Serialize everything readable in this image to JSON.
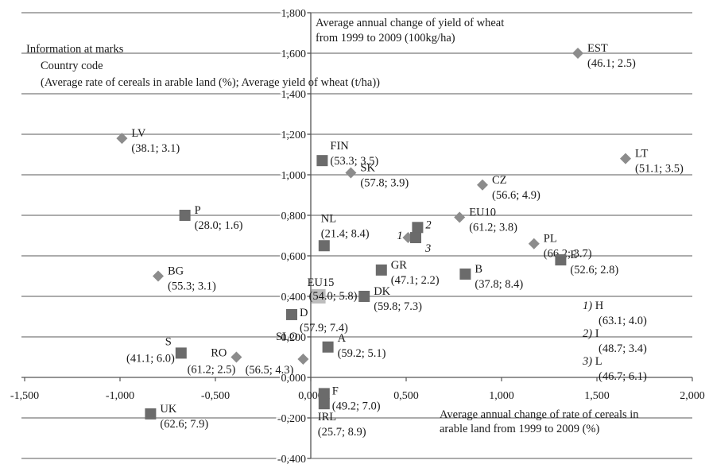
{
  "chart_data": {
    "type": "scatter",
    "title": "",
    "ylabel": "Average annual change of yield of wheat from 1999 to 2009 (100kg/ha)",
    "ylabel_lines": [
      "Average annual change of yield of wheat",
      "from 1999 to 2009 (100kg/ha)"
    ],
    "xlabel": "Average annual change of rate of cereals in arable land from 1999 to 2009 (%)",
    "xlabel_lines": [
      "Average annual change of rate of cereals in",
      "arable land from 1999 to 2009 (%)"
    ],
    "xlim": [
      -1.5,
      2.0
    ],
    "ylim": [
      -0.4,
      1.8
    ],
    "x_ticks": [
      "-1,500",
      "-1,000",
      "-0,500",
      "0,000",
      "0,500",
      "1,000",
      "1,500",
      "2,000"
    ],
    "x_tick_values": [
      -1.5,
      -1.0,
      -0.5,
      0.0,
      0.5,
      1.0,
      1.5,
      2.0
    ],
    "y_ticks": [
      "-0,400",
      "-0,200",
      "0,000",
      "0,200",
      "0,400",
      "0,600",
      "0,800",
      "1,000",
      "1,200",
      "1,400",
      "1,600",
      "1,800"
    ],
    "y_tick_values": [
      -0.4,
      -0.2,
      0.0,
      0.2,
      0.4,
      0.6,
      0.8,
      1.0,
      1.2,
      1.4,
      1.6,
      1.8
    ],
    "grid": "horizontal",
    "legend_note": {
      "title": "Information at marks",
      "line1": "Country code",
      "line2": "(Average rate of cereals in arable land (%); Average yield of wheat (t/ha))"
    },
    "footnotes": [
      {
        "num": "1)",
        "code": "H",
        "info": "(63.1; 4.0)"
      },
      {
        "num": "2)",
        "code": "I",
        "info": "(48.7; 3.4)"
      },
      {
        "num": "3)",
        "code": "L",
        "info": "(46.7; 6.1)"
      }
    ],
    "colors": {
      "diamond": "#8c8c8c",
      "square": "#6b6b6b",
      "eu15": "#bdbdbd",
      "grid": "#7a7a7a"
    },
    "points": [
      {
        "code": "EST",
        "info": "(46.1; 2.5)",
        "x": 1.4,
        "y": 1.6,
        "marker": "diamond",
        "label_pos": "right"
      },
      {
        "code": "LV",
        "info": "(38.1; 3.1)",
        "x": -0.99,
        "y": 1.18,
        "marker": "diamond",
        "label_pos": "right"
      },
      {
        "code": "LT",
        "info": "(51.1; 3.5)",
        "x": 1.65,
        "y": 1.08,
        "marker": "diamond",
        "label_pos": "right"
      },
      {
        "code": "FIN",
        "info": "(53.3; 3.5)",
        "x": 0.06,
        "y": 1.07,
        "marker": "square",
        "label_pos": "right"
      },
      {
        "code": "SK",
        "info": "(57.8; 3.9)",
        "x": 0.21,
        "y": 1.01,
        "marker": "diamond",
        "label_pos": "right"
      },
      {
        "code": "CZ",
        "info": "(56.6; 4.9)",
        "x": 0.9,
        "y": 0.95,
        "marker": "diamond",
        "label_pos": "right"
      },
      {
        "code": "P",
        "info": "(28.0; 1.6)",
        "x": -0.66,
        "y": 0.8,
        "marker": "square",
        "label_pos": "right"
      },
      {
        "code": "NL",
        "info": "(21.4; 8.4)",
        "x": 0.07,
        "y": 0.65,
        "marker": "square",
        "label_pos": "above"
      },
      {
        "code": "EU10",
        "info": "(61.2; 3.8)",
        "x": 0.78,
        "y": 0.79,
        "marker": "diamond",
        "label_pos": "right"
      },
      {
        "code": "PL",
        "info": "(66.2; 3.7)",
        "x": 1.17,
        "y": 0.66,
        "marker": "diamond",
        "label_pos": "right"
      },
      {
        "code": "E",
        "info": "(52.6; 2.8)",
        "x": 1.31,
        "y": 0.58,
        "marker": "square",
        "label_pos": "right"
      },
      {
        "code": "1)",
        "info": "",
        "x": 0.51,
        "y": 0.69,
        "marker": "diamond",
        "label_pos": "left"
      },
      {
        "code": "2)",
        "info": "",
        "x": 0.56,
        "y": 0.74,
        "marker": "square",
        "label_pos": "right"
      },
      {
        "code": "3)",
        "info": "",
        "x": 0.55,
        "y": 0.69,
        "marker": "square",
        "label_pos": "right"
      },
      {
        "code": "BG",
        "info": "(55.3; 3.1)",
        "x": -0.8,
        "y": 0.5,
        "marker": "diamond",
        "label_pos": "right"
      },
      {
        "code": "GR",
        "info": "(47.1; 2.2)",
        "x": 0.37,
        "y": 0.53,
        "marker": "square",
        "label_pos": "right"
      },
      {
        "code": "B",
        "info": "(37.8; 8.4)",
        "x": 0.81,
        "y": 0.51,
        "marker": "square",
        "label_pos": "right"
      },
      {
        "code": "EU15",
        "info": "(54.0; 5.8)",
        "x": 0.04,
        "y": 0.4,
        "marker": "square-light",
        "label_pos": "above"
      },
      {
        "code": "DK",
        "info": "(59.8; 7.3)",
        "x": 0.28,
        "y": 0.4,
        "marker": "square",
        "label_pos": "right"
      },
      {
        "code": "D",
        "info": "(57.9; 7.4)",
        "x": -0.1,
        "y": 0.31,
        "marker": "square",
        "label_pos": "right"
      },
      {
        "code": "A",
        "info": "(59.2; 5.1)",
        "x": 0.09,
        "y": 0.15,
        "marker": "square",
        "label_pos": "right"
      },
      {
        "code": "S",
        "info": "(41.1; 6.0)",
        "x": -0.68,
        "y": 0.12,
        "marker": "square",
        "label_pos": "left"
      },
      {
        "code": "RO",
        "info": "(61.2; 2.5)",
        "x": -0.39,
        "y": 0.1,
        "marker": "diamond",
        "label_pos": "left"
      },
      {
        "code": "SLO",
        "info": "(56.5; 4.3)",
        "x": -0.04,
        "y": 0.09,
        "marker": "diamond",
        "label_pos": "left"
      },
      {
        "code": "F",
        "info": "(49.2; 7.0)",
        "x": 0.07,
        "y": -0.08,
        "marker": "square",
        "label_pos": "right"
      },
      {
        "code": "IRL",
        "info": "(25.7; 8.9)",
        "x": 0.07,
        "y": -0.13,
        "marker": "square",
        "label_pos": "below"
      },
      {
        "code": "UK",
        "info": "(62.6; 7.9)",
        "x": -0.84,
        "y": -0.18,
        "marker": "square",
        "label_pos": "right"
      }
    ]
  }
}
